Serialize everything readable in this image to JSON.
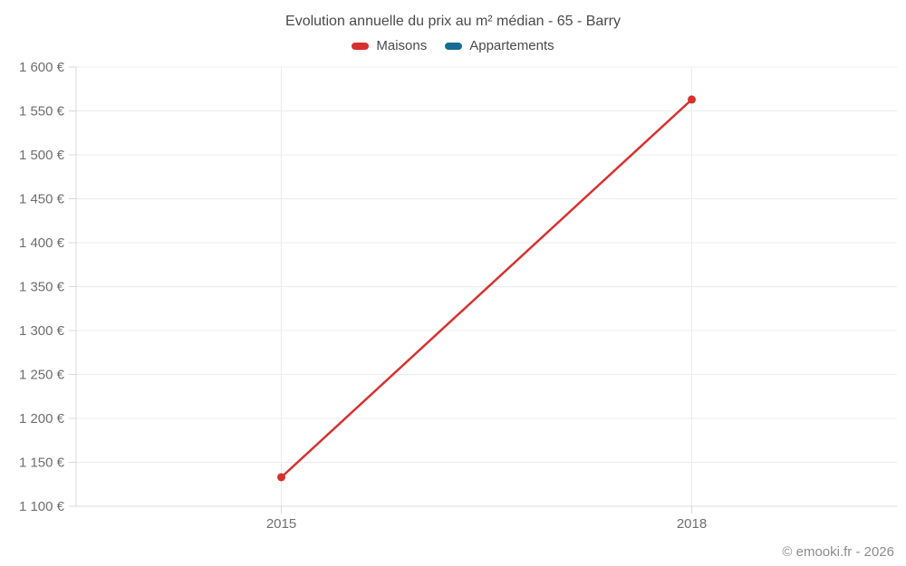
{
  "header": {
    "title": "Evolution annuelle du prix au m² médian - 65 - Barry"
  },
  "footer": {
    "copyright": "© emooki.fr - 2026"
  },
  "colors": {
    "grid": "#ececec",
    "axis": "#d8d8d8",
    "title_text": "#4a4a4a",
    "tick_text": "#6e6e6e",
    "footer_text": "#8c8c8c",
    "maisons": "#d7312e",
    "appartements": "#1a6a96"
  },
  "chart_data": {
    "type": "line",
    "title": "Evolution annuelle du prix au m² médian - 65 - Barry",
    "x": [
      "2015",
      "2018"
    ],
    "series": [
      {
        "name": "Maisons",
        "color": "#d7312e",
        "values": [
          1133,
          1563
        ]
      },
      {
        "name": "Appartements",
        "color": "#1a6a96",
        "values": []
      }
    ],
    "xlabel": "",
    "ylabel": "",
    "ylim": [
      1100,
      1600
    ],
    "ytick_step": 50,
    "ytick_labels": [
      "1 100 €",
      "1 150 €",
      "1 200 €",
      "1 250 €",
      "1 300 €",
      "1 350 €",
      "1 400 €",
      "1 450 €",
      "1 500 €",
      "1 550 €",
      "1 600 €"
    ],
    "grid": true,
    "legend_position": "top",
    "marker_radius": 4.5,
    "line_width": 2.5
  }
}
